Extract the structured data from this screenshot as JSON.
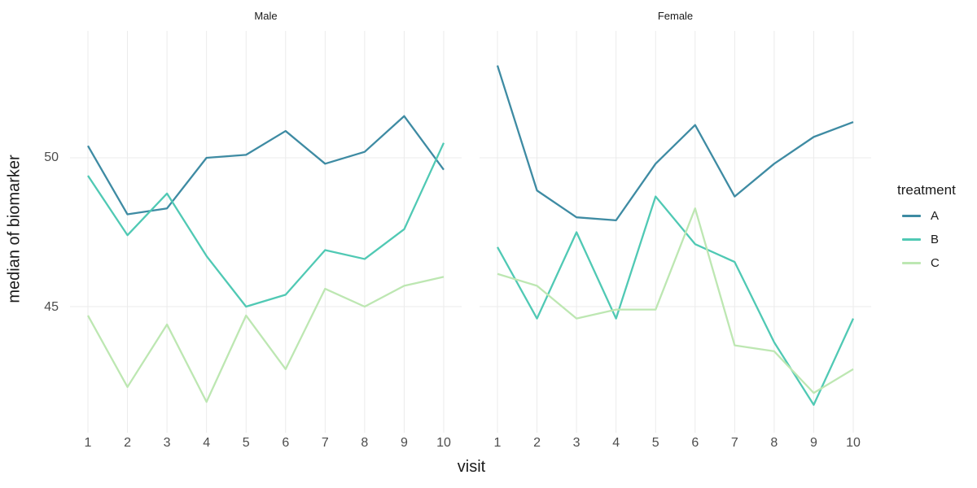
{
  "figure": {
    "y_axis_title": "median of biomarker",
    "x_axis_title": "visit",
    "y_ticks": [
      "50",
      "45"
    ]
  },
  "legend": {
    "title": "treatment",
    "items": [
      {
        "label": "A",
        "color": "#3e8ba3"
      },
      {
        "label": "B",
        "color": "#50c9b4"
      },
      {
        "label": "C",
        "color": "#bde7b2"
      }
    ]
  },
  "chart_data": {
    "type": "line",
    "x": [
      1,
      2,
      3,
      4,
      5,
      6,
      7,
      8,
      9,
      10
    ],
    "xlabel": "visit",
    "ylabel": "median of biomarker",
    "y_breaks": [
      45,
      50
    ],
    "ylim": [
      40.8,
      54.3
    ],
    "grid": true,
    "legend_title": "treatment",
    "legend_position": "right",
    "colors": {
      "grid": "#ebebeb",
      "axis_text": "#4d4d4d",
      "title_text": "#1a1a1a"
    },
    "facets": [
      {
        "label": "Male",
        "series": [
          {
            "name": "A",
            "color": "#3e8ba3",
            "values": [
              50.4,
              48.1,
              48.3,
              50.0,
              50.1,
              50.9,
              49.8,
              50.2,
              51.4,
              49.6
            ]
          },
          {
            "name": "B",
            "color": "#50c9b4",
            "values": [
              49.4,
              47.4,
              48.8,
              46.7,
              45.0,
              45.4,
              46.9,
              46.6,
              47.6,
              50.5
            ]
          },
          {
            "name": "C",
            "color": "#bde7b2",
            "values": [
              44.7,
              42.3,
              44.4,
              41.8,
              44.7,
              42.9,
              45.6,
              45.0,
              45.7,
              46.0
            ]
          }
        ]
      },
      {
        "label": "Female",
        "series": [
          {
            "name": "A",
            "color": "#3e8ba3",
            "values": [
              53.1,
              48.9,
              48.0,
              47.9,
              49.8,
              51.1,
              48.7,
              49.8,
              50.7,
              51.2
            ]
          },
          {
            "name": "B",
            "color": "#50c9b4",
            "values": [
              47.0,
              44.6,
              47.5,
              44.6,
              48.7,
              47.1,
              46.5,
              43.8,
              41.7,
              44.6
            ]
          },
          {
            "name": "C",
            "color": "#bde7b2",
            "values": [
              46.1,
              45.7,
              44.6,
              44.9,
              44.9,
              48.3,
              43.7,
              43.5,
              42.1,
              42.9
            ]
          }
        ]
      }
    ]
  }
}
